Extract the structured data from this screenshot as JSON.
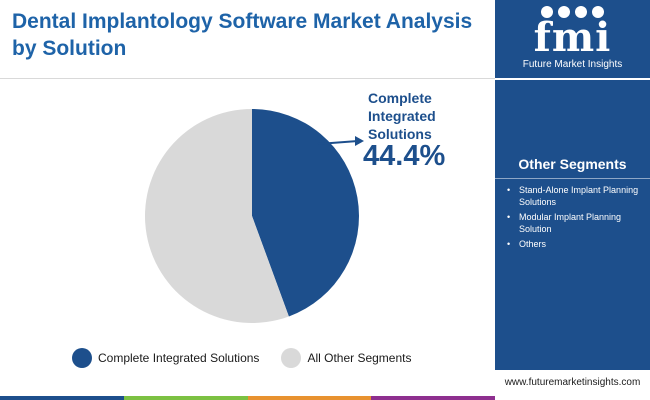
{
  "title": "Dental Implantology Software Market Analysis by Solution",
  "logo": {
    "mark": "fmi",
    "name": "Future Market Insights"
  },
  "sidebar": {
    "heading": "Other Segments",
    "items": [
      "Stand-Alone Implant Planning Solutions",
      "Modular Implant Planning Solution",
      "Others"
    ],
    "website": "www.futuremarketinsights.com"
  },
  "colors": {
    "brand": "#1d4f8c",
    "title": "#1e63a8",
    "other": "#d9d9d9",
    "bottom_bar": [
      "#1d4f8c",
      "#7cc142",
      "#e8922f",
      "#8e2f8f"
    ]
  },
  "chart_data": {
    "type": "pie",
    "categories": [
      "Complete Integrated Solutions",
      "All Other Segments"
    ],
    "values": [
      44.4,
      55.6
    ],
    "colors": [
      "#1d4f8c",
      "#d9d9d9"
    ],
    "unit": "%",
    "legend": "bottom",
    "callout": {
      "label": "Complete Integrated Solutions",
      "value": "44.4%"
    }
  }
}
